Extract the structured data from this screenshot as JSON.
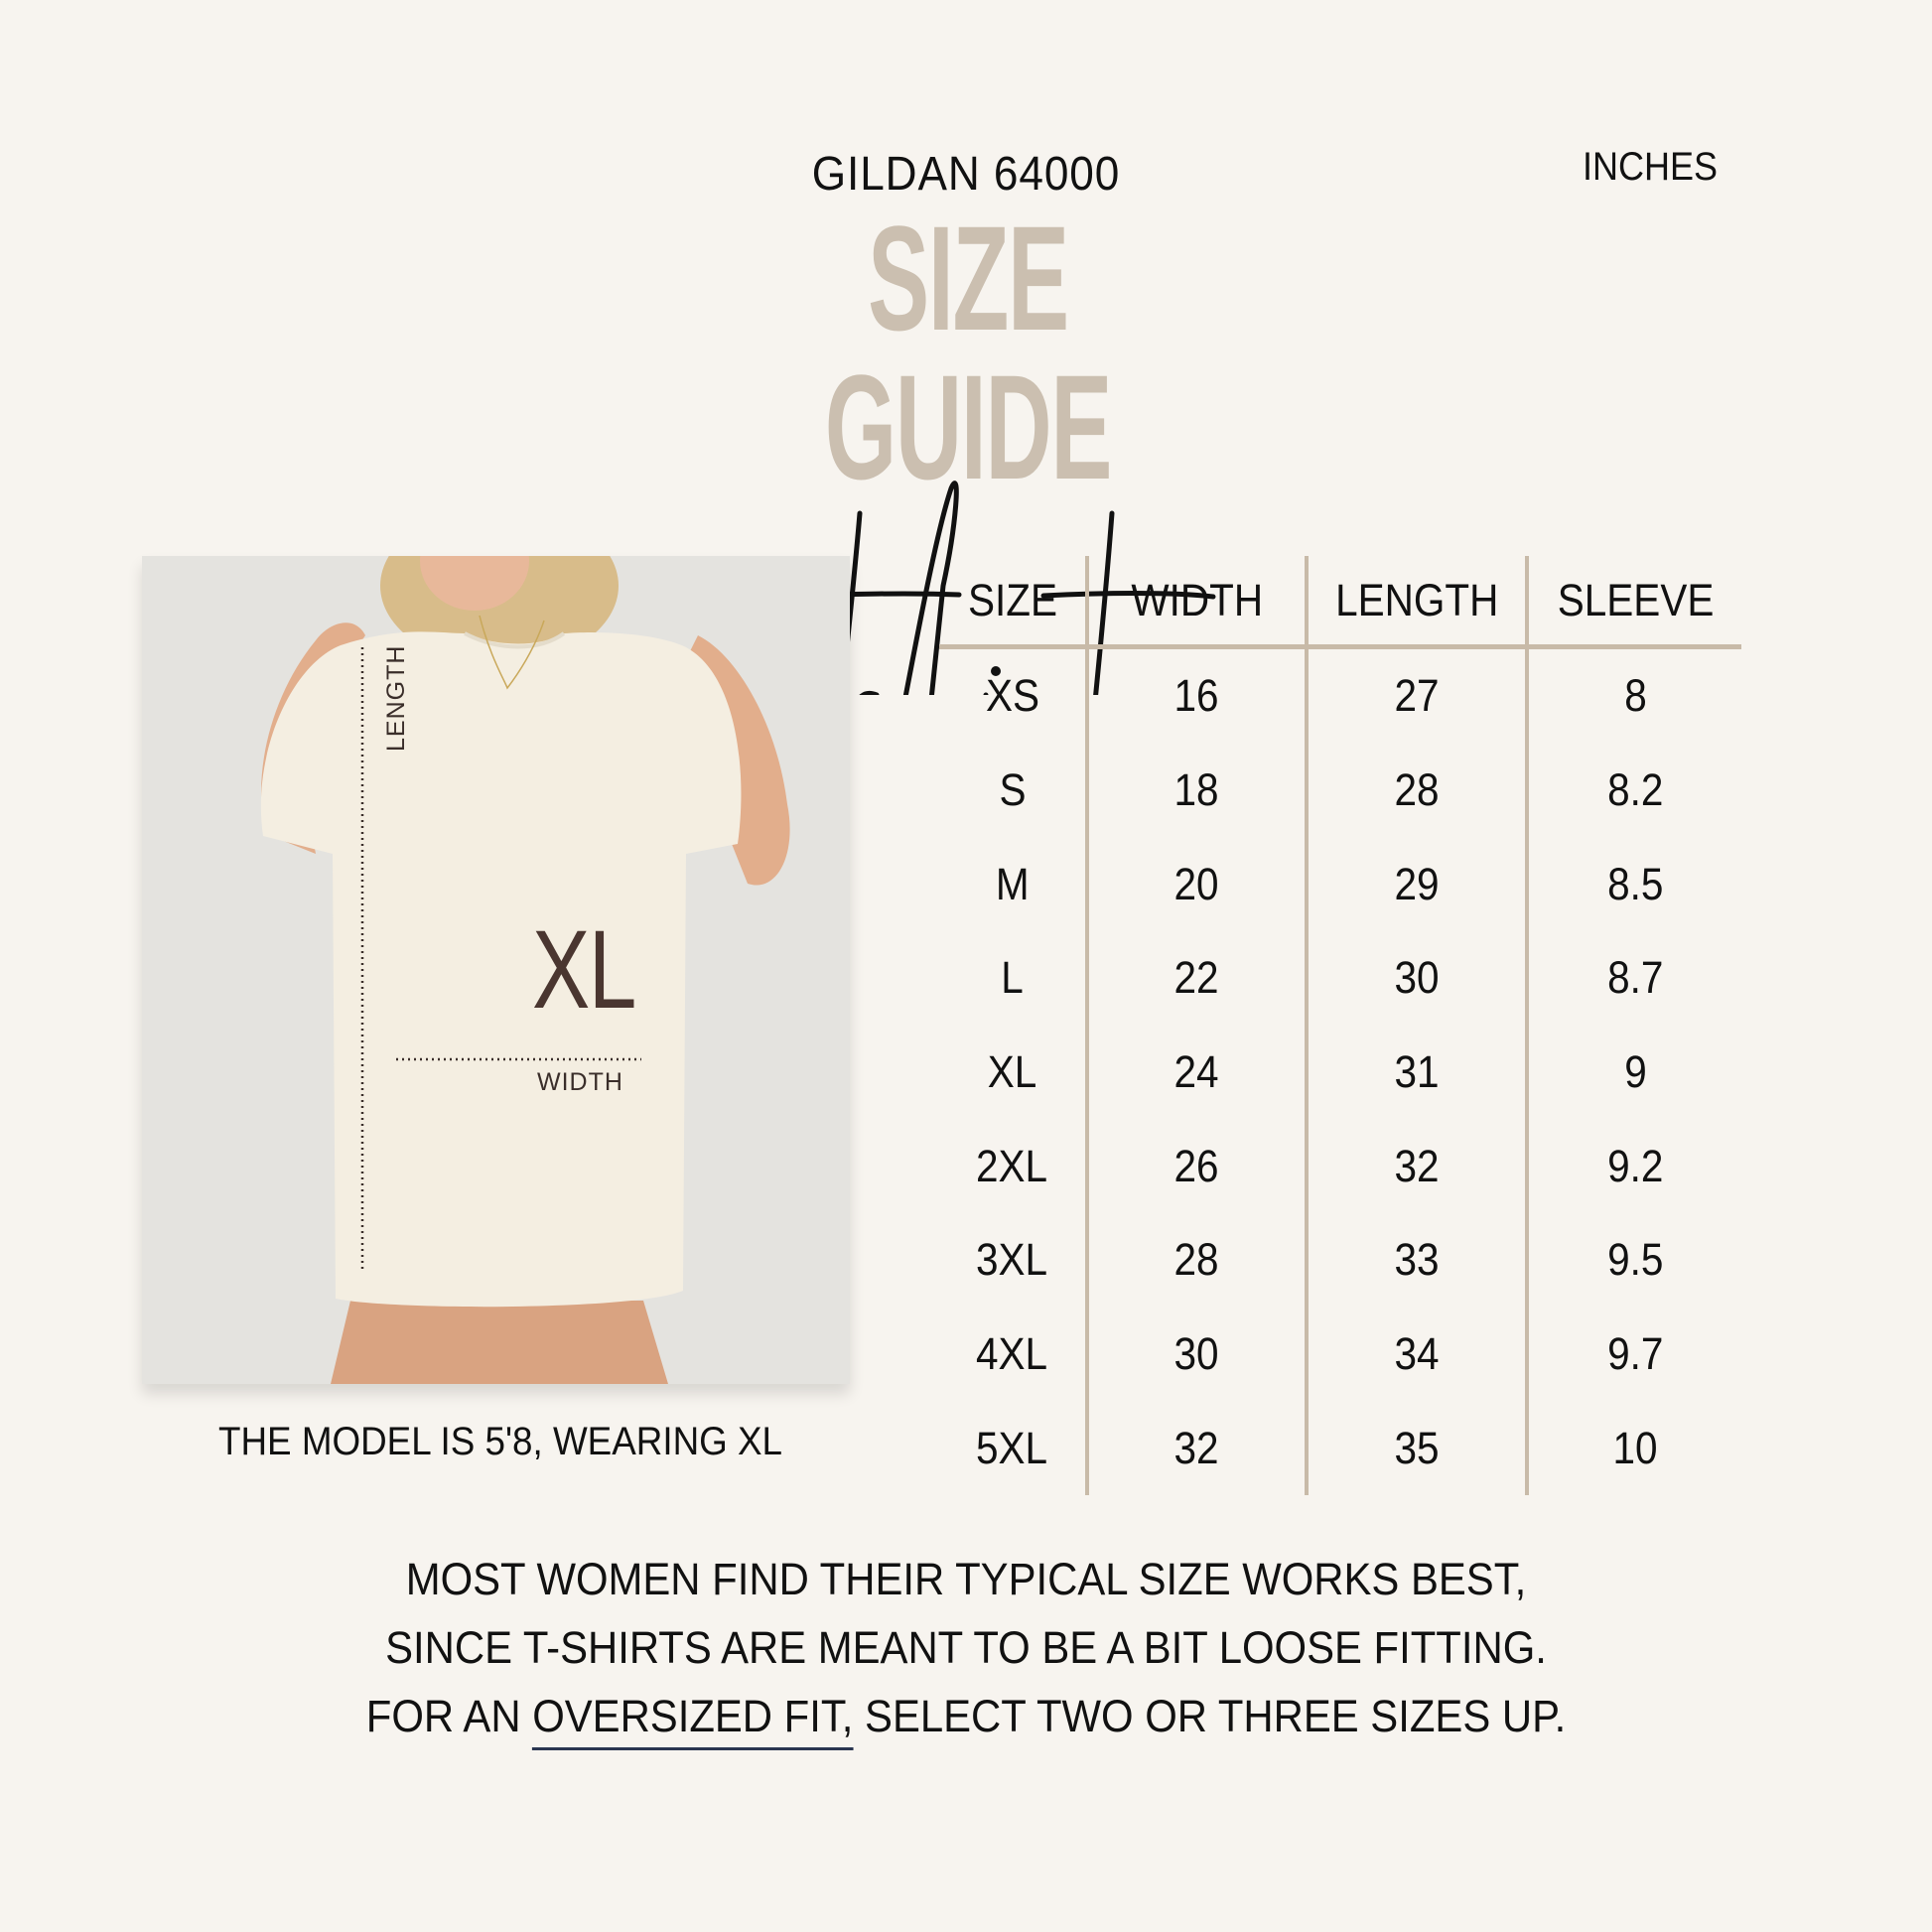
{
  "header": {
    "brand": "GILDAN 64000",
    "units": "INCHES",
    "title": "SIZE GUIDE",
    "script_title": "tshirt"
  },
  "colors": {
    "background": "#f7f4ef",
    "title_accent": "#cbbfb0",
    "table_rule": "#c8baa8",
    "xl_label": "#4a3630",
    "underline": "#2a3550"
  },
  "photo": {
    "length_label": "LENGTH",
    "width_label": "WIDTH",
    "size_badge": "XL",
    "caption": "THE MODEL IS 5'8, WEARING XL"
  },
  "table": {
    "headers": [
      "SIZE",
      "WIDTH",
      "LENGTH",
      "SLEEVE"
    ],
    "rows": [
      [
        "XS",
        "16",
        "27",
        "8"
      ],
      [
        "S",
        "18",
        "28",
        "8.2"
      ],
      [
        "M",
        "20",
        "29",
        "8.5"
      ],
      [
        "L",
        "22",
        "30",
        "8.7"
      ],
      [
        "XL",
        "24",
        "31",
        "9"
      ],
      [
        "2XL",
        "26",
        "32",
        "9.2"
      ],
      [
        "3XL",
        "28",
        "33",
        "9.5"
      ],
      [
        "4XL",
        "30",
        "34",
        "9.7"
      ],
      [
        "5XL",
        "32",
        "35",
        "10"
      ]
    ]
  },
  "note": {
    "line1": "MOST WOMEN FIND THEIR TYPICAL SIZE WORKS BEST,",
    "line2": "SINCE T-SHIRTS ARE MEANT TO BE A BIT LOOSE FITTING.",
    "line3_prefix": "FOR AN ",
    "line3_link": "OVERSIZED FIT,",
    "line3_suffix": " SELECT TWO OR THREE SIZES UP."
  }
}
